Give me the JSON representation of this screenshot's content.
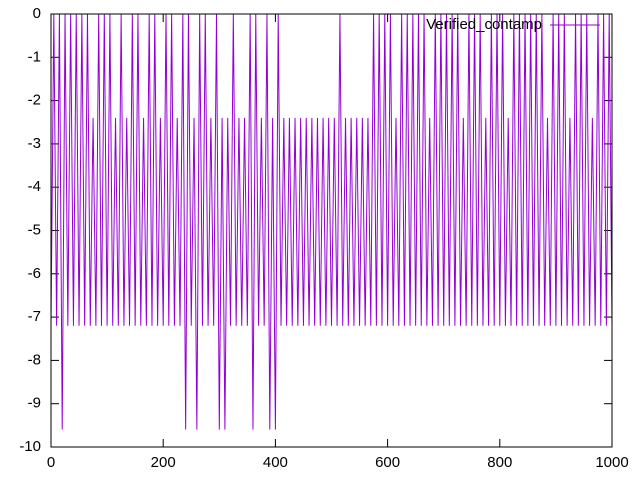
{
  "chart_data": {
    "type": "line",
    "legend": "right top",
    "grid": false,
    "xlim": [
      0,
      1000
    ],
    "xticks": [
      0,
      200,
      400,
      600,
      800,
      1000
    ],
    "ylim": [
      -10,
      0
    ],
    "yticks": [
      0,
      -1,
      -2,
      -3,
      -4,
      -5,
      -6,
      -7,
      -8,
      -9,
      -10
    ],
    "x": [
      0,
      5,
      10,
      15,
      20,
      25,
      30,
      35,
      40,
      45,
      50,
      55,
      60,
      65,
      70,
      75,
      80,
      85,
      90,
      95,
      100,
      105,
      110,
      115,
      120,
      125,
      130,
      135,
      140,
      145,
      150,
      155,
      160,
      165,
      170,
      175,
      180,
      185,
      190,
      195,
      200,
      205,
      210,
      215,
      220,
      225,
      230,
      235,
      240,
      245,
      250,
      255,
      260,
      265,
      270,
      275,
      280,
      285,
      290,
      295,
      300,
      305,
      310,
      315,
      320,
      325,
      330,
      335,
      340,
      345,
      350,
      355,
      360,
      365,
      370,
      375,
      380,
      385,
      390,
      395,
      400,
      405,
      410,
      415,
      420,
      425,
      430,
      435,
      440,
      445,
      450,
      455,
      460,
      465,
      470,
      475,
      480,
      485,
      490,
      495,
      500,
      505,
      510,
      515,
      520,
      525,
      530,
      535,
      540,
      545,
      550,
      555,
      560,
      565,
      570,
      575,
      580,
      585,
      590,
      595,
      600,
      605,
      610,
      615,
      620,
      625,
      630,
      635,
      640,
      645,
      650,
      655,
      660,
      665,
      670,
      675,
      680,
      685,
      690,
      695,
      700,
      705,
      710,
      715,
      720,
      725,
      730,
      735,
      740,
      745,
      750,
      755,
      760,
      765,
      770,
      775,
      780,
      785,
      790,
      795,
      800,
      805,
      810,
      815,
      820,
      825,
      830,
      835,
      840,
      845,
      850,
      855,
      860,
      865,
      870,
      875,
      880,
      885,
      890,
      895,
      900,
      905,
      910,
      915,
      920,
      925,
      930,
      935,
      940,
      945,
      950,
      955,
      960,
      965,
      970,
      975,
      980,
      985,
      990,
      995,
      1000
    ],
    "series": [
      {
        "name": "Verified_contamp",
        "color": "#9400d3",
        "values": [
          -7.2,
          0,
          -7.2,
          0,
          -9.6,
          0,
          -7.2,
          0,
          -7.2,
          0,
          -7.2,
          0,
          -7.2,
          0,
          -7.2,
          -2.4,
          -7.2,
          0,
          -7.2,
          0,
          -7.2,
          0,
          -7.2,
          -2.4,
          -7.2,
          0,
          -7.2,
          -2.4,
          -7.2,
          0,
          -7.2,
          0,
          -7.2,
          -2.4,
          -7.2,
          0,
          -7.2,
          0,
          -7.2,
          -2.4,
          -7.2,
          0,
          -7.2,
          0,
          -7.2,
          -2.4,
          -7.2,
          0,
          -9.6,
          0,
          -7.2,
          -2.4,
          -9.6,
          0,
          -7.2,
          0,
          -7.2,
          -2.4,
          -7.2,
          0,
          -9.6,
          -2.4,
          -9.6,
          -2.4,
          -7.2,
          0,
          -7.2,
          -2.4,
          -7.2,
          -2.4,
          -7.2,
          0,
          -9.6,
          0,
          -7.2,
          -2.4,
          -7.2,
          0,
          -9.6,
          -2.4,
          -9.6,
          0,
          -7.2,
          -2.4,
          -7.2,
          -2.4,
          -7.2,
          -2.4,
          -7.2,
          -2.4,
          -7.2,
          -2.4,
          -7.2,
          -2.4,
          -7.2,
          -2.4,
          -7.2,
          -2.4,
          -7.2,
          -2.4,
          -7.2,
          -2.4,
          -7.2,
          0,
          -7.2,
          -2.4,
          -7.2,
          -2.4,
          -7.2,
          -2.4,
          -7.2,
          -2.4,
          -7.2,
          -2.4,
          -7.2,
          0,
          -7.2,
          0,
          -7.2,
          0,
          -7.2,
          0,
          -7.2,
          -2.4,
          -7.2,
          0,
          -7.2,
          0,
          -7.2,
          0,
          -7.2,
          0,
          -7.2,
          0,
          -7.2,
          -2.4,
          -7.2,
          0,
          -7.2,
          0,
          -7.2,
          0,
          -7.2,
          0,
          -7.2,
          0,
          -7.2,
          -2.4,
          -7.2,
          0,
          -7.2,
          0,
          -7.2,
          0,
          -7.2,
          -2.4,
          -7.2,
          0,
          -7.2,
          0,
          -7.2,
          0,
          -7.2,
          -2.4,
          -7.2,
          0,
          -7.2,
          0,
          -7.2,
          0,
          -7.2,
          0,
          -7.2,
          0,
          -7.2,
          0,
          -7.2,
          -2.4,
          -7.2,
          0,
          -7.2,
          0,
          -7.2,
          0,
          -7.2,
          -2.4,
          -7.2,
          0,
          -7.2,
          0,
          -7.2,
          0,
          -7.2,
          -2.4,
          -7.2,
          0,
          -7.2,
          0,
          -7.2,
          0,
          -7.2
        ]
      }
    ]
  }
}
